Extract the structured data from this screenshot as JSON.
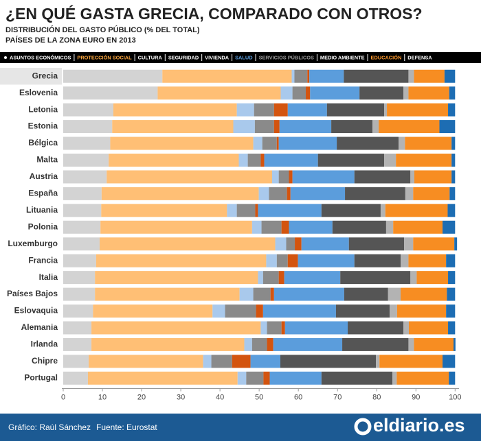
{
  "chart_data": {
    "type": "stacked-bar-horizontal",
    "title": "¿EN QUÉ GASTA GRECIA, COMPARADO CON OTROS?",
    "subtitle": [
      "DISTRIBUCIÓN DEL GASTO PÚBLICO (% DEL TOTAL)",
      "PAÍSES DE LA ZONA EURO EN 2013"
    ],
    "highlight": "Grecia",
    "categories": [
      "Grecia",
      "Eslovenia",
      "Letonia",
      "Estonia",
      "Bélgica",
      "Malta",
      "Austria",
      "España",
      "Lituania",
      "Polonia",
      "Luxemburgo",
      "Francia",
      "Italia",
      "Países Bajos",
      "Eslovaquia",
      "Alemania",
      "Irlanda",
      "Chipre",
      "Portugal"
    ],
    "series": [
      {
        "name": "ASUNTOS ECONÓMICOS",
        "color": "#d3d3d3",
        "legend_text_color": "#ffffff",
        "values": [
          25.3,
          24.1,
          12.8,
          12.5,
          12.0,
          11.6,
          11.1,
          9.8,
          9.7,
          9.5,
          9.3,
          8.4,
          8.1,
          8.1,
          7.6,
          7.2,
          7.2,
          6.5,
          6.3
        ]
      },
      {
        "name": "PROTECCIÓN SOCIAL",
        "color": "#ffbf75",
        "legend_text_color": "#ffa940",
        "values": [
          33.0,
          31.4,
          31.5,
          30.9,
          36.5,
          33.2,
          42.2,
          40.1,
          32.1,
          38.7,
          44.8,
          43.4,
          41.6,
          36.9,
          30.5,
          43.2,
          39.0,
          29.2,
          38.2
        ]
      },
      {
        "name": "CULTURA",
        "color": "#a9c9ec",
        "legend_text_color": "#ffffff",
        "values": [
          0.7,
          3.0,
          4.4,
          5.5,
          2.3,
          2.3,
          1.7,
          2.6,
          2.5,
          2.4,
          2.8,
          2.7,
          1.3,
          3.5,
          3.2,
          1.6,
          2.0,
          2.1,
          2.2
        ]
      },
      {
        "name": "SEGURIDAD",
        "color": "#8a8a8a",
        "legend_text_color": "#ffffff",
        "values": [
          3.3,
          3.4,
          5.1,
          4.9,
          3.7,
          3.3,
          2.6,
          4.6,
          4.7,
          5.1,
          2.2,
          2.8,
          4.0,
          4.4,
          7.9,
          3.7,
          3.8,
          5.3,
          4.4
        ]
      },
      {
        "name": "VIVIENDA",
        "color": "#d3540f",
        "legend_text_color": "#ffffff",
        "values": [
          0.5,
          1.1,
          3.5,
          1.4,
          0.5,
          0.9,
          0.9,
          0.9,
          0.7,
          1.9,
          1.7,
          2.6,
          1.4,
          0.9,
          1.8,
          0.9,
          1.6,
          4.7,
          1.6
        ]
      },
      {
        "name": "SALUD",
        "color": "#5b9ddc",
        "legend_text_color": "#5b9ddc",
        "values": [
          8.8,
          12.6,
          10.0,
          13.2,
          14.8,
          13.7,
          15.8,
          13.9,
          16.2,
          11.1,
          12.1,
          14.4,
          14.3,
          17.9,
          18.6,
          16.0,
          17.6,
          7.6,
          13.2
        ]
      },
      {
        "name": "SERVICIOS PÚBLICOS",
        "color": "#555555",
        "legend_text_color": "#9a9a9a",
        "values": [
          16.5,
          11.2,
          14.6,
          10.5,
          15.8,
          16.9,
          14.3,
          15.4,
          15.1,
          13.7,
          14.1,
          11.8,
          17.9,
          11.2,
          13.7,
          14.2,
          16.9,
          24.4,
          18.1
        ]
      },
      {
        "name": "MEDIO AMBIENTE",
        "color": "#b3b3b3",
        "legend_text_color": "#ffffff",
        "values": [
          1.4,
          1.3,
          0.7,
          1.6,
          1.6,
          3.0,
          1.0,
          2.0,
          1.2,
          1.8,
          2.3,
          2.0,
          1.6,
          3.2,
          1.9,
          1.4,
          1.4,
          0.9,
          1.1
        ]
      },
      {
        "name": "EDUCACIÓN",
        "color": "#f78d22",
        "legend_text_color": "#ff9a2e",
        "values": [
          7.8,
          10.4,
          15.6,
          15.5,
          11.9,
          14.2,
          9.5,
          9.3,
          15.9,
          12.6,
          10.5,
          9.6,
          8.0,
          11.8,
          12.5,
          10.0,
          10.1,
          16.1,
          13.3
        ]
      },
      {
        "name": "DEFENSA",
        "color": "#1d6db3",
        "legend_text_color": "#ffffff",
        "values": [
          2.7,
          1.5,
          1.8,
          4.0,
          0.9,
          0.9,
          0.9,
          1.4,
          1.9,
          3.2,
          0.7,
          2.3,
          1.8,
          2.1,
          2.3,
          1.8,
          0.5,
          3.2,
          1.6
        ]
      }
    ],
    "xlim": [
      0,
      101
    ],
    "xticks": [
      0,
      10,
      20,
      30,
      40,
      50,
      60,
      70,
      80,
      90,
      100
    ]
  },
  "footer": {
    "credit": "Gráfico: Raúl Sánchez",
    "source": "Fuente: Eurostat",
    "logo": "eldiario.es"
  }
}
